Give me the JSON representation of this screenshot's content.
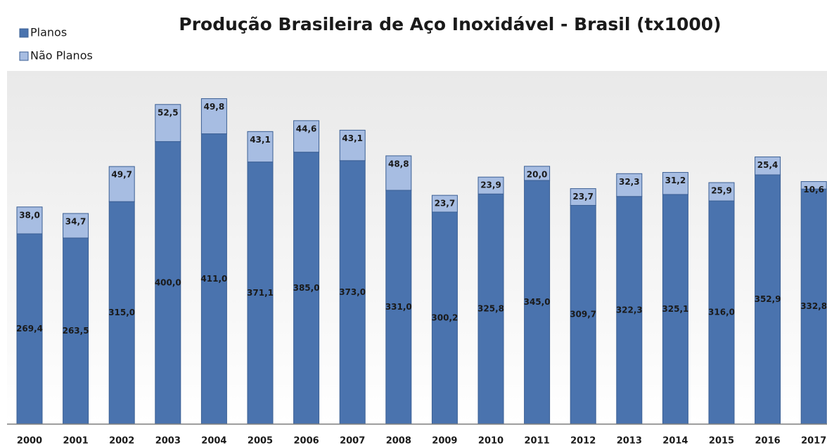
{
  "chart_data": {
    "type": "stacked_bar",
    "title": "Produção Brasileira de Aço Inoxidável - Brasil  (tx1000)",
    "categories": [
      "2000",
      "2001",
      "2002",
      "2003",
      "2004",
      "2005",
      "2006",
      "2007",
      "2008",
      "2009",
      "2010",
      "2011",
      "2012",
      "2013",
      "2014",
      "2015",
      "2016",
      "2017"
    ],
    "series": [
      {
        "name": "Planos",
        "color": "#4a73ae",
        "values": [
          269.4,
          263.5,
          315.0,
          400.0,
          411.0,
          371.1,
          385.0,
          373.0,
          331.0,
          300.2,
          325.8,
          345.0,
          309.7,
          322.3,
          325.1,
          316.0,
          352.9,
          332.8
        ],
        "value_labels": [
          "269,4",
          "263,5",
          "315,0",
          "400,0",
          "411,0",
          "371,1",
          "385,0",
          "373,0",
          "331,0",
          "300,2",
          "325,8",
          "345,0",
          "309,7",
          "322,3",
          "325,1",
          "316,0",
          "352,9",
          "332,8"
        ]
      },
      {
        "name": "Não Planos",
        "color": "#a7bde2",
        "values": [
          38.0,
          34.7,
          49.7,
          52.5,
          49.8,
          43.1,
          44.6,
          43.1,
          48.8,
          23.7,
          23.9,
          20.0,
          23.7,
          32.3,
          31.2,
          25.9,
          25.4,
          10.6
        ],
        "value_labels": [
          "38,0",
          "34,7",
          "49,7",
          "52,5",
          "49,8",
          "43,1",
          "44,6",
          "43,1",
          "48,8",
          "23,7",
          "23,9",
          "20,0",
          "23,7",
          "32,3",
          "31,2",
          "25,9",
          "25,4",
          "10,6"
        ]
      }
    ],
    "ylim": [
      0,
      500
    ],
    "legend": "top-left"
  }
}
